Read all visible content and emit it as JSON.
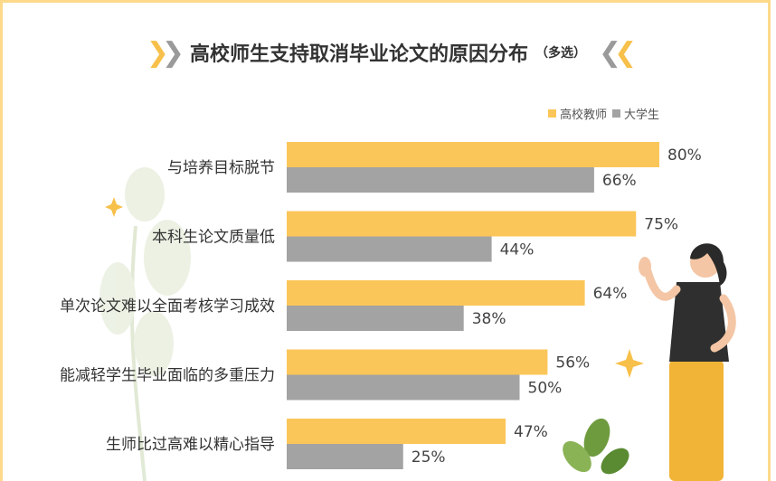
{
  "chart_data": {
    "type": "bar",
    "title": "高校师生支持取消毕业论文的原因分布",
    "subtitle": "（多选）",
    "categories": [
      "与培养目标脱节",
      "本科生论文质量低",
      "单次论文难以全面考核学习成效",
      "能减轻学生毕业面临的多重压力",
      "生师比过高难以精心指导"
    ],
    "series": [
      {
        "name": "高校教师",
        "values": [
          80,
          75,
          64,
          56,
          47
        ],
        "color": "#fbc659"
      },
      {
        "name": "大学生",
        "values": [
          66,
          44,
          38,
          50,
          25
        ],
        "color": "#a3a3a3"
      }
    ],
    "value_suffix": "%",
    "xlim": [
      0,
      100
    ],
    "legend_position": "top-right",
    "orientation": "horizontal",
    "grid": false
  },
  "decor": {
    "chevron_color": "#f7c04a",
    "frame_color": "#fdd98a"
  }
}
